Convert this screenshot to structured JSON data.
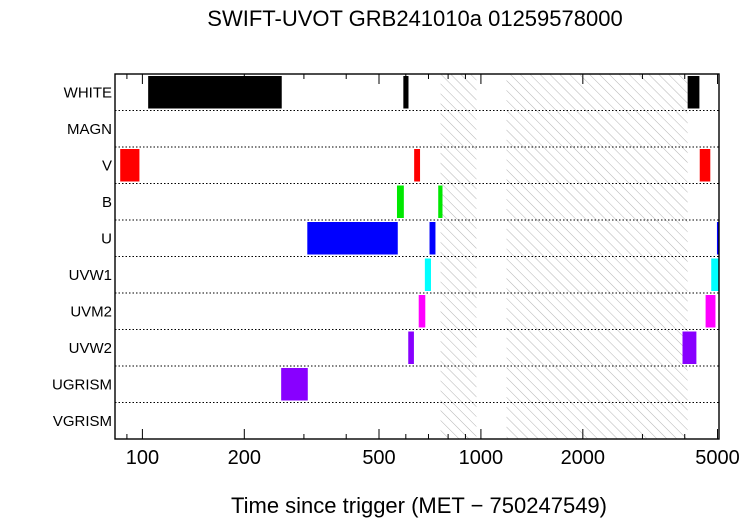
{
  "chart_data": {
    "type": "timeline",
    "title": "SWIFT-UVOT GRB241010a 01259578000",
    "xlabel": "Time since trigger (MET − 750247549)",
    "x_scale": "log",
    "xlim": [
      83,
      5050
    ],
    "x_ticks": [
      {
        "value": 100,
        "label": "100"
      },
      {
        "value": 200,
        "label": "200"
      },
      {
        "value": 500,
        "label": "500"
      },
      {
        "value": 1000,
        "label": "1000"
      },
      {
        "value": 2000,
        "label": "2000"
      },
      {
        "value": 5000,
        "label": "5000"
      }
    ],
    "rows": [
      "WHITE",
      "MAGN",
      "V",
      "B",
      "U",
      "UVW1",
      "UVM2",
      "UVW2",
      "UGRISM",
      "VGRISM"
    ],
    "row_colors": {
      "WHITE": "#000000",
      "V": "#ff0000",
      "B": "#00e800",
      "U": "#0000ff",
      "UVW1": "#00ffff",
      "UVM2": "#ff00ff",
      "UVW2": "#8800ff",
      "UGRISM": "#8800ff"
    },
    "hatched_intervals": [
      [
        760,
        970
      ],
      [
        1190,
        4080
      ]
    ],
    "exposures": [
      {
        "filter": "WHITE",
        "start": 104,
        "end": 258
      },
      {
        "filter": "WHITE",
        "start": 590,
        "end": 611
      },
      {
        "filter": "WHITE",
        "start": 4080,
        "end": 4420
      },
      {
        "filter": "V",
        "start": 86,
        "end": 98
      },
      {
        "filter": "V",
        "start": 635,
        "end": 661
      },
      {
        "filter": "V",
        "start": 4430,
        "end": 4760
      },
      {
        "filter": "B",
        "start": 565,
        "end": 592
      },
      {
        "filter": "B",
        "start": 748,
        "end": 770
      },
      {
        "filter": "U",
        "start": 307,
        "end": 568
      },
      {
        "filter": "U",
        "start": 705,
        "end": 734
      },
      {
        "filter": "U",
        "start": 4980,
        "end": 5050
      },
      {
        "filter": "UVW1",
        "start": 683,
        "end": 712
      },
      {
        "filter": "UVW1",
        "start": 4790,
        "end": 5050
      },
      {
        "filter": "UVM2",
        "start": 655,
        "end": 685
      },
      {
        "filter": "UVM2",
        "start": 4610,
        "end": 4930
      },
      {
        "filter": "UVW2",
        "start": 610,
        "end": 634
      },
      {
        "filter": "UVW2",
        "start": 3940,
        "end": 4330
      },
      {
        "filter": "UGRISM",
        "start": 257,
        "end": 308
      }
    ]
  }
}
